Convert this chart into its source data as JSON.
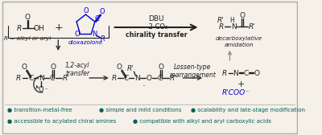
{
  "bg_color": "#f5f0e8",
  "border_color": "#aaaaaa",
  "bullet_color": "#006060",
  "blue_color": "#0000cc",
  "black_color": "#222222",
  "arrow_color": "#333333",
  "bullets_row1": [
    "transition-metal-free",
    "simple and mild conditions",
    "scalability and late-stage modification"
  ],
  "bullets_row2": [
    "accessible to acylated chiral amines",
    "compatible with alkyl and aryl carboxylic acids"
  ]
}
